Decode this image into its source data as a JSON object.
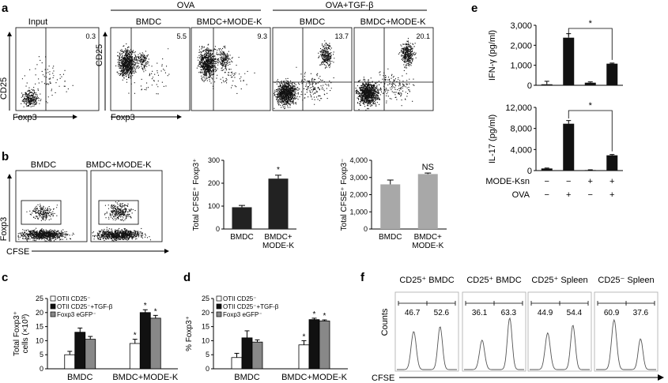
{
  "panel_a": {
    "label": "a",
    "header_ova": "OVA",
    "header_ova_tgf": "OVA+TGF-β",
    "xlabel": "Foxp3",
    "ylabel": "CD25",
    "plots": [
      {
        "title": "Input",
        "value": "0.3"
      },
      {
        "title": "BMDC",
        "value": "5.5"
      },
      {
        "title": "BMDC+MODE-K",
        "value": "9.3"
      },
      {
        "title": "BMDC",
        "value": "13.7"
      },
      {
        "title": "BMDC+MODE-K",
        "value": "20.1"
      }
    ]
  },
  "panel_b": {
    "label": "b",
    "flow_titles": [
      "BMDC",
      "BMDC+MODE-K"
    ],
    "xlabel": "CFSE",
    "ylabel": "Foxp3"
  },
  "panel_c": {
    "label": "c"
  },
  "panel_d": {
    "label": "d"
  },
  "panel_e": {
    "label": "e"
  },
  "panel_f": {
    "label": "f",
    "ylabel": "Counts",
    "xlabel": "CFSE",
    "hists": [
      {
        "title": "CD25⁺ BMDC",
        "left": "46.7",
        "right": "52.6"
      },
      {
        "title": "CD25⁺ BMDC",
        "left": "36.1",
        "right": "63.3"
      },
      {
        "title": "CD25⁺ Spleen",
        "left": "44.9",
        "right": "54.4"
      },
      {
        "title": "CD25⁻ Spleen",
        "left": "60.9",
        "right": "37.6"
      }
    ]
  },
  "chart_data": [
    {
      "id": "b1",
      "type": "bar",
      "ylabel": "Total CFSE⁺ Foxp3⁺",
      "categories": [
        "BMDC",
        "BMDC+ MODE-K"
      ],
      "values": [
        95,
        220
      ],
      "errors": [
        8,
        15
      ],
      "ylim": [
        0,
        300
      ],
      "yticks": [
        0,
        100,
        200,
        300
      ],
      "annotations": [
        "",
        "*"
      ],
      "colors": [
        "#222222",
        "#222222"
      ]
    },
    {
      "id": "b2",
      "type": "bar",
      "ylabel": "Total CFSE⁺ Foxp3⁻",
      "categories": [
        "BMDC",
        "BMDC+ MODE-K"
      ],
      "values": [
        2600,
        3200
      ],
      "errors": [
        250,
        60
      ],
      "ylim": [
        0,
        4000
      ],
      "yticks": [
        0,
        1000,
        2000,
        3000,
        4000
      ],
      "annotations": [
        "",
        "NS"
      ],
      "colors": [
        "#a8a8a8",
        "#a8a8a8"
      ]
    },
    {
      "id": "c",
      "type": "bar",
      "ylabel": "Total Foxp3⁺ cells (×10³)",
      "categories": [
        "BMDC",
        "BMDC+MODE-K"
      ],
      "series": [
        {
          "name": "OTII CD25⁻",
          "values": [
            5,
            9
          ],
          "errors": [
            1.2,
            1.5
          ],
          "color": "#ffffff",
          "stars": [
            "",
            "*"
          ]
        },
        {
          "name": "OTII CD25⁻+TGF-β",
          "values": [
            13,
            20
          ],
          "errors": [
            1.5,
            1
          ],
          "color": "#111111",
          "stars": [
            "",
            "*"
          ]
        },
        {
          "name": "Foxp3 eGFP⁻",
          "values": [
            10.5,
            18
          ],
          "errors": [
            1,
            1
          ],
          "color": "#888888",
          "stars": [
            "",
            "*"
          ]
        }
      ],
      "ylim": [
        0,
        25
      ],
      "yticks": [
        0,
        5,
        10,
        15,
        20,
        25
      ]
    },
    {
      "id": "d",
      "type": "bar",
      "ylabel": "% Foxp3⁺",
      "categories": [
        "BMDC",
        "BMDC+MODE-K"
      ],
      "series": [
        {
          "name": "OTII CD25⁻",
          "values": [
            4,
            8.5
          ],
          "errors": [
            1.5,
            1.5
          ],
          "color": "#ffffff",
          "stars": [
            "",
            "*"
          ]
        },
        {
          "name": "OTII CD25⁻+TGF-β",
          "values": [
            11,
            17.5
          ],
          "errors": [
            2.5,
            0.5
          ],
          "color": "#111111",
          "stars": [
            "",
            "*"
          ]
        },
        {
          "name": "Foxp3 eGFP⁻",
          "values": [
            9.5,
            17
          ],
          "errors": [
            0.8,
            0.4
          ],
          "color": "#888888",
          "stars": [
            "",
            "*"
          ]
        }
      ],
      "ylim": [
        0,
        25
      ],
      "yticks": [
        0,
        5,
        10,
        15,
        20,
        25
      ]
    },
    {
      "id": "e1",
      "type": "bar",
      "ylabel": "IFN-γ (pg/ml)",
      "values": [
        50,
        2380,
        130,
        1080
      ],
      "errors": [
        150,
        200,
        40,
        30
      ],
      "ylim": [
        0,
        3000
      ],
      "yticks": [
        0,
        1000,
        2000,
        3000
      ],
      "ytick_labels": [
        "0",
        "1,000",
        "2,000",
        "3,000"
      ],
      "sig_bracket": [
        1,
        3,
        "*"
      ]
    },
    {
      "id": "e2",
      "type": "bar",
      "ylabel": "IL-17 (pg/ml)",
      "values": [
        400,
        8900,
        100,
        2900
      ],
      "errors": [
        80,
        600,
        50,
        150
      ],
      "ylim": [
        0,
        12000
      ],
      "yticks": [
        0,
        4000,
        8000,
        12000
      ],
      "ytick_labels": [
        "0",
        "4,000",
        "8,000",
        "12,000"
      ],
      "sig_bracket": [
        1,
        3,
        "*"
      ],
      "row_labels": [
        "MODE-Ksn",
        "OVA"
      ],
      "row_values": [
        [
          "−",
          "−",
          "+",
          "+"
        ],
        [
          "−",
          "+",
          "−",
          "+"
        ]
      ]
    }
  ]
}
